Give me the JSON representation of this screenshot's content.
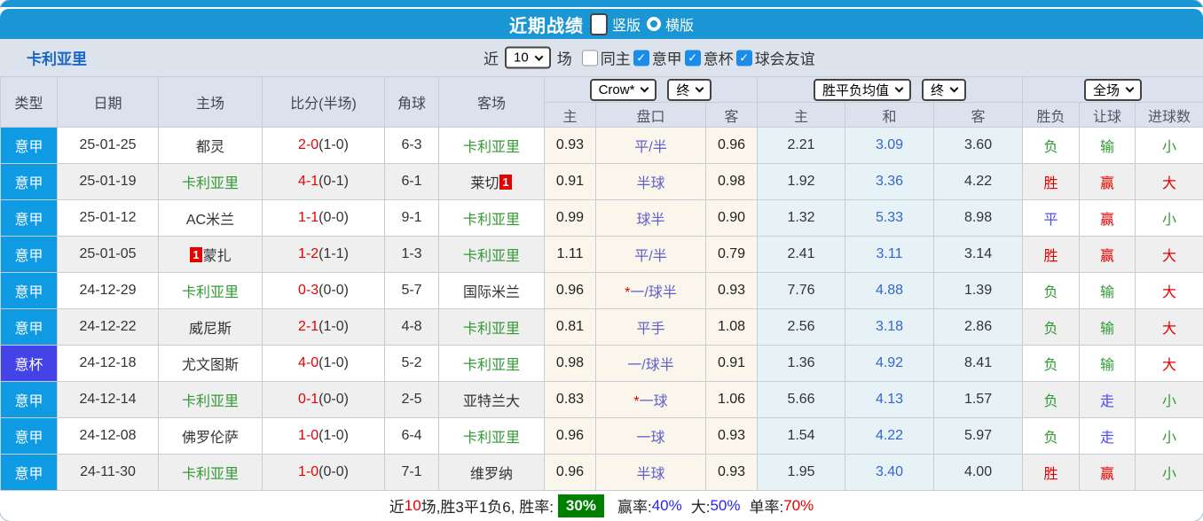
{
  "colors": {
    "header_blue": "#1a96d4",
    "league_badge_blue": "#0f9ae4",
    "cup_badge_blue": "#4343e8",
    "team_green": "#339933",
    "win_red": "#e60000",
    "draw_walk_blue": "#4a4af5",
    "handicap_text_blue": "#6060c8",
    "avg_draw_blue": "#3366cc",
    "odds_bg_cream": "#fbf6ec",
    "avg_bg_lightblue": "#e7f2f7",
    "rate_badge_green": "#008000"
  },
  "title_bar": {
    "title": "近期战绩",
    "radios": [
      {
        "label": "竖版",
        "selected": true
      },
      {
        "label": "横版",
        "selected": false
      }
    ]
  },
  "filter": {
    "team": "卡利亚里",
    "recent_label": "近",
    "recent_value": "10",
    "matches_label": "场",
    "same_home_away": {
      "label": "同主",
      "checked": false
    },
    "competitions": [
      {
        "label": "意甲",
        "checked": true
      },
      {
        "label": "意杯",
        "checked": true
      },
      {
        "label": "球会友谊",
        "checked": true
      }
    ]
  },
  "table": {
    "main_headers": [
      "类型",
      "日期",
      "主场",
      "比分(半场)",
      "角球",
      "客场"
    ],
    "dropdowns": {
      "bookmaker": "Crow*",
      "time1": "终",
      "average": "胜平负均值",
      "time2": "终",
      "scope": "全场"
    },
    "sub_headers": [
      "主",
      "盘口",
      "客",
      "主",
      "和",
      "客",
      "胜负",
      "让球",
      "进球数"
    ],
    "rows": [
      {
        "type": "意甲",
        "type_kind": "league",
        "date": "25-01-25",
        "home": "都灵",
        "home_green": false,
        "home_card_pre": "",
        "score": "2-0",
        "half": "(1-0)",
        "corners": "6-3",
        "away": "卡利亚里",
        "away_green": true,
        "away_card_post": "",
        "odds_home": "0.93",
        "handicap": "平/半",
        "handicap_star": false,
        "odds_away": "0.96",
        "avg_home": "2.21",
        "avg_draw": "3.09",
        "avg_away": "3.60",
        "result": "负",
        "result_color": "green",
        "let_result": "输",
        "let_color": "green",
        "goal_result": "小",
        "goal_color": "green"
      },
      {
        "type": "意甲",
        "type_kind": "league",
        "date": "25-01-19",
        "home": "卡利亚里",
        "home_green": true,
        "home_card_pre": "",
        "score": "4-1",
        "half": "(0-1)",
        "corners": "6-1",
        "away": "莱切",
        "away_green": false,
        "away_card_post": "1",
        "odds_home": "0.91",
        "handicap": "半球",
        "handicap_star": false,
        "odds_away": "0.98",
        "avg_home": "1.92",
        "avg_draw": "3.36",
        "avg_away": "4.22",
        "result": "胜",
        "result_color": "red",
        "let_result": "赢",
        "let_color": "red",
        "goal_result": "大",
        "goal_color": "red"
      },
      {
        "type": "意甲",
        "type_kind": "league",
        "date": "25-01-12",
        "home": "AC米兰",
        "home_green": false,
        "home_card_pre": "",
        "score": "1-1",
        "half": "(0-0)",
        "corners": "9-1",
        "away": "卡利亚里",
        "away_green": true,
        "away_card_post": "",
        "odds_home": "0.99",
        "handicap": "球半",
        "handicap_star": false,
        "odds_away": "0.90",
        "avg_home": "1.32",
        "avg_draw": "5.33",
        "avg_away": "8.98",
        "result": "平",
        "result_color": "blue",
        "let_result": "赢",
        "let_color": "red",
        "goal_result": "小",
        "goal_color": "green"
      },
      {
        "type": "意甲",
        "type_kind": "league",
        "date": "25-01-05",
        "home": "蒙扎",
        "home_green": false,
        "home_card_pre": "1",
        "score": "1-2",
        "half": "(1-1)",
        "corners": "1-3",
        "away": "卡利亚里",
        "away_green": true,
        "away_card_post": "",
        "odds_home": "1.11",
        "handicap": "平/半",
        "handicap_star": false,
        "odds_away": "0.79",
        "avg_home": "2.41",
        "avg_draw": "3.11",
        "avg_away": "3.14",
        "result": "胜",
        "result_color": "red",
        "let_result": "赢",
        "let_color": "red",
        "goal_result": "大",
        "goal_color": "red"
      },
      {
        "type": "意甲",
        "type_kind": "league",
        "date": "24-12-29",
        "home": "卡利亚里",
        "home_green": true,
        "home_card_pre": "",
        "score": "0-3",
        "half": "(0-0)",
        "corners": "5-7",
        "away": "国际米兰",
        "away_green": false,
        "away_card_post": "",
        "odds_home": "0.96",
        "handicap": "一/球半",
        "handicap_star": true,
        "odds_away": "0.93",
        "avg_home": "7.76",
        "avg_draw": "4.88",
        "avg_away": "1.39",
        "result": "负",
        "result_color": "green",
        "let_result": "输",
        "let_color": "green",
        "goal_result": "大",
        "goal_color": "red"
      },
      {
        "type": "意甲",
        "type_kind": "league",
        "date": "24-12-22",
        "home": "威尼斯",
        "home_green": false,
        "home_card_pre": "",
        "score": "2-1",
        "half": "(1-0)",
        "corners": "4-8",
        "away": "卡利亚里",
        "away_green": true,
        "away_card_post": "",
        "odds_home": "0.81",
        "handicap": "平手",
        "handicap_star": false,
        "odds_away": "1.08",
        "avg_home": "2.56",
        "avg_draw": "3.18",
        "avg_away": "2.86",
        "result": "负",
        "result_color": "green",
        "let_result": "输",
        "let_color": "green",
        "goal_result": "大",
        "goal_color": "red"
      },
      {
        "type": "意杯",
        "type_kind": "cup",
        "date": "24-12-18",
        "home": "尤文图斯",
        "home_green": false,
        "home_card_pre": "",
        "score": "4-0",
        "half": "(1-0)",
        "corners": "5-2",
        "away": "卡利亚里",
        "away_green": true,
        "away_card_post": "",
        "odds_home": "0.98",
        "handicap": "一/球半",
        "handicap_star": false,
        "odds_away": "0.91",
        "avg_home": "1.36",
        "avg_draw": "4.92",
        "avg_away": "8.41",
        "result": "负",
        "result_color": "green",
        "let_result": "输",
        "let_color": "green",
        "goal_result": "大",
        "goal_color": "red"
      },
      {
        "type": "意甲",
        "type_kind": "league",
        "date": "24-12-14",
        "home": "卡利亚里",
        "home_green": true,
        "home_card_pre": "",
        "score": "0-1",
        "half": "(0-0)",
        "corners": "2-5",
        "away": "亚特兰大",
        "away_green": false,
        "away_card_post": "",
        "odds_home": "0.83",
        "handicap": "一球",
        "handicap_star": true,
        "odds_away": "1.06",
        "avg_home": "5.66",
        "avg_draw": "4.13",
        "avg_away": "1.57",
        "result": "负",
        "result_color": "green",
        "let_result": "走",
        "let_color": "blue",
        "goal_result": "小",
        "goal_color": "green"
      },
      {
        "type": "意甲",
        "type_kind": "league",
        "date": "24-12-08",
        "home": "佛罗伦萨",
        "home_green": false,
        "home_card_pre": "",
        "score": "1-0",
        "half": "(1-0)",
        "corners": "6-4",
        "away": "卡利亚里",
        "away_green": true,
        "away_card_post": "",
        "odds_home": "0.96",
        "handicap": "一球",
        "handicap_star": false,
        "odds_away": "0.93",
        "avg_home": "1.54",
        "avg_draw": "4.22",
        "avg_away": "5.97",
        "result": "负",
        "result_color": "green",
        "let_result": "走",
        "let_color": "blue",
        "goal_result": "小",
        "goal_color": "green"
      },
      {
        "type": "意甲",
        "type_kind": "league",
        "date": "24-11-30",
        "home": "卡利亚里",
        "home_green": true,
        "home_card_pre": "",
        "score": "1-0",
        "half": "(0-0)",
        "corners": "7-1",
        "away": "维罗纳",
        "away_green": false,
        "away_card_post": "",
        "odds_home": "0.96",
        "handicap": "半球",
        "handicap_star": false,
        "odds_away": "0.93",
        "avg_home": "1.95",
        "avg_draw": "3.40",
        "avg_away": "4.00",
        "result": "胜",
        "result_color": "red",
        "let_result": "赢",
        "let_color": "red",
        "goal_result": "小",
        "goal_color": "green"
      }
    ]
  },
  "footer": {
    "pre": "近",
    "count": "10",
    "mid": "场,胜3平1负6, 胜率:",
    "win_rate": "30%",
    "odds_win_label": "赢率:",
    "odds_win": "40%",
    "big_label": "大:",
    "big_rate": "50%",
    "single_label": "单率:",
    "single_rate": "70%"
  }
}
